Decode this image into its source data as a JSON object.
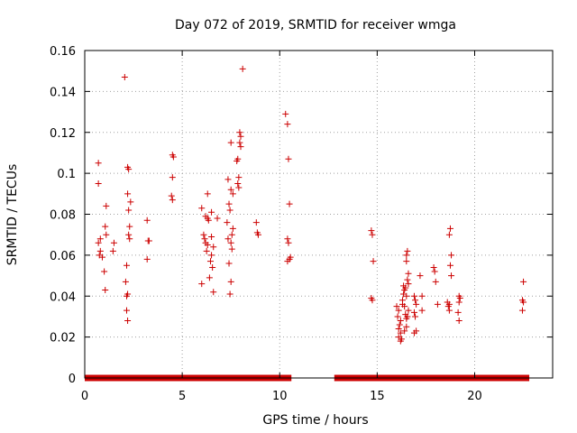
{
  "chart_data": {
    "type": "scatter",
    "title": "Day 072 of 2019, SRMTID for receiver wmga",
    "xlabel": "GPS time / hours",
    "ylabel": "SRMTID / TECUs",
    "xlim": [
      0,
      24
    ],
    "ylim": [
      0,
      0.16
    ],
    "grid": true,
    "marker": "+",
    "marker_color": "#cc0000",
    "xticks": [
      0,
      5,
      10,
      15,
      20
    ],
    "xtick_labels": [
      "0",
      "5",
      "10",
      "15",
      "20"
    ],
    "yticks": [
      0,
      0.02,
      0.04,
      0.06,
      0.08,
      0.1,
      0.12,
      0.14,
      0.16
    ],
    "ytick_labels": [
      "0",
      "0.02",
      "0.04",
      "0.06",
      "0.08",
      "0.1",
      "0.12",
      "0.14",
      "0.16"
    ],
    "zero_ranges": [
      [
        0.0,
        10.6
      ],
      [
        12.8,
        22.8
      ]
    ],
    "points": [
      [
        0.7,
        0.105
      ],
      [
        0.7,
        0.095
      ],
      [
        0.8,
        0.068
      ],
      [
        0.7,
        0.066
      ],
      [
        0.8,
        0.062
      ],
      [
        0.75,
        0.06
      ],
      [
        0.9,
        0.059
      ],
      [
        1.1,
        0.084
      ],
      [
        1.05,
        0.074
      ],
      [
        1.1,
        0.07
      ],
      [
        1.0,
        0.052
      ],
      [
        1.05,
        0.043
      ],
      [
        1.5,
        0.066
      ],
      [
        1.45,
        0.062
      ],
      [
        2.05,
        0.147
      ],
      [
        2.2,
        0.103
      ],
      [
        2.25,
        0.102
      ],
      [
        2.2,
        0.09
      ],
      [
        2.35,
        0.086
      ],
      [
        2.25,
        0.082
      ],
      [
        2.3,
        0.074
      ],
      [
        2.25,
        0.07
      ],
      [
        2.3,
        0.068
      ],
      [
        2.15,
        0.055
      ],
      [
        2.1,
        0.047
      ],
      [
        2.2,
        0.041
      ],
      [
        2.15,
        0.04
      ],
      [
        2.15,
        0.033
      ],
      [
        2.2,
        0.028
      ],
      [
        3.2,
        0.077
      ],
      [
        3.25,
        0.067
      ],
      [
        3.3,
        0.067
      ],
      [
        3.2,
        0.058
      ],
      [
        4.5,
        0.109
      ],
      [
        4.55,
        0.108
      ],
      [
        4.5,
        0.098
      ],
      [
        4.45,
        0.089
      ],
      [
        4.5,
        0.087
      ],
      [
        6.0,
        0.083
      ],
      [
        6.3,
        0.09
      ],
      [
        6.2,
        0.079
      ],
      [
        6.3,
        0.078
      ],
      [
        6.35,
        0.077
      ],
      [
        6.5,
        0.081
      ],
      [
        6.1,
        0.07
      ],
      [
        6.15,
        0.068
      ],
      [
        6.2,
        0.066
      ],
      [
        6.3,
        0.065
      ],
      [
        6.25,
        0.062
      ],
      [
        6.5,
        0.069
      ],
      [
        6.6,
        0.064
      ],
      [
        6.5,
        0.06
      ],
      [
        6.45,
        0.057
      ],
      [
        6.55,
        0.054
      ],
      [
        6.4,
        0.049
      ],
      [
        6.0,
        0.046
      ],
      [
        6.6,
        0.042
      ],
      [
        6.8,
        0.078
      ],
      [
        7.5,
        0.115
      ],
      [
        7.35,
        0.097
      ],
      [
        7.5,
        0.092
      ],
      [
        7.6,
        0.09
      ],
      [
        7.4,
        0.085
      ],
      [
        7.45,
        0.082
      ],
      [
        7.3,
        0.076
      ],
      [
        7.6,
        0.073
      ],
      [
        7.55,
        0.07
      ],
      [
        7.35,
        0.068
      ],
      [
        7.5,
        0.066
      ],
      [
        7.55,
        0.063
      ],
      [
        7.4,
        0.056
      ],
      [
        7.5,
        0.047
      ],
      [
        7.45,
        0.041
      ],
      [
        7.8,
        0.106
      ],
      [
        7.85,
        0.107
      ],
      [
        7.95,
        0.12
      ],
      [
        8.0,
        0.118
      ],
      [
        7.95,
        0.115
      ],
      [
        8.0,
        0.113
      ],
      [
        8.1,
        0.151
      ],
      [
        7.9,
        0.098
      ],
      [
        7.85,
        0.095
      ],
      [
        7.9,
        0.093
      ],
      [
        8.8,
        0.076
      ],
      [
        8.85,
        0.071
      ],
      [
        8.9,
        0.07
      ],
      [
        10.3,
        0.129
      ],
      [
        10.4,
        0.124
      ],
      [
        10.45,
        0.107
      ],
      [
        10.5,
        0.085
      ],
      [
        10.4,
        0.068
      ],
      [
        10.45,
        0.066
      ],
      [
        10.55,
        0.059
      ],
      [
        10.5,
        0.058
      ],
      [
        10.4,
        0.057
      ],
      [
        14.7,
        0.072
      ],
      [
        14.75,
        0.07
      ],
      [
        14.8,
        0.057
      ],
      [
        14.7,
        0.039
      ],
      [
        14.75,
        0.038
      ],
      [
        16.0,
        0.035
      ],
      [
        16.1,
        0.033
      ],
      [
        16.05,
        0.03
      ],
      [
        16.2,
        0.028
      ],
      [
        16.15,
        0.026
      ],
      [
        16.1,
        0.024
      ],
      [
        16.2,
        0.022
      ],
      [
        16.1,
        0.02
      ],
      [
        16.2,
        0.018
      ],
      [
        16.25,
        0.019
      ],
      [
        16.3,
        0.038
      ],
      [
        16.3,
        0.036
      ],
      [
        16.35,
        0.041
      ],
      [
        16.4,
        0.043
      ],
      [
        16.45,
        0.044
      ],
      [
        16.35,
        0.045
      ],
      [
        16.5,
        0.04
      ],
      [
        16.4,
        0.035
      ],
      [
        16.45,
        0.031
      ],
      [
        16.5,
        0.029
      ],
      [
        16.55,
        0.03
      ],
      [
        16.6,
        0.033
      ],
      [
        16.5,
        0.025
      ],
      [
        16.4,
        0.023
      ],
      [
        16.5,
        0.06
      ],
      [
        16.55,
        0.062
      ],
      [
        16.5,
        0.057
      ],
      [
        16.6,
        0.051
      ],
      [
        16.55,
        0.048
      ],
      [
        16.6,
        0.046
      ],
      [
        16.9,
        0.04
      ],
      [
        16.95,
        0.038
      ],
      [
        17.0,
        0.036
      ],
      [
        16.9,
        0.032
      ],
      [
        16.95,
        0.03
      ],
      [
        17.0,
        0.023
      ],
      [
        16.9,
        0.022
      ],
      [
        17.2,
        0.05
      ],
      [
        17.3,
        0.04
      ],
      [
        17.3,
        0.033
      ],
      [
        17.9,
        0.054
      ],
      [
        17.95,
        0.052
      ],
      [
        18.0,
        0.047
      ],
      [
        18.1,
        0.036
      ],
      [
        18.6,
        0.037
      ],
      [
        18.65,
        0.035
      ],
      [
        18.7,
        0.036
      ],
      [
        18.7,
        0.033
      ],
      [
        18.75,
        0.073
      ],
      [
        18.7,
        0.07
      ],
      [
        18.8,
        0.06
      ],
      [
        18.75,
        0.055
      ],
      [
        18.8,
        0.05
      ],
      [
        19.2,
        0.04
      ],
      [
        19.25,
        0.039
      ],
      [
        19.2,
        0.037
      ],
      [
        19.15,
        0.032
      ],
      [
        19.2,
        0.028
      ],
      [
        22.5,
        0.047
      ],
      [
        22.45,
        0.038
      ],
      [
        22.5,
        0.037
      ],
      [
        22.45,
        0.033
      ]
    ]
  }
}
